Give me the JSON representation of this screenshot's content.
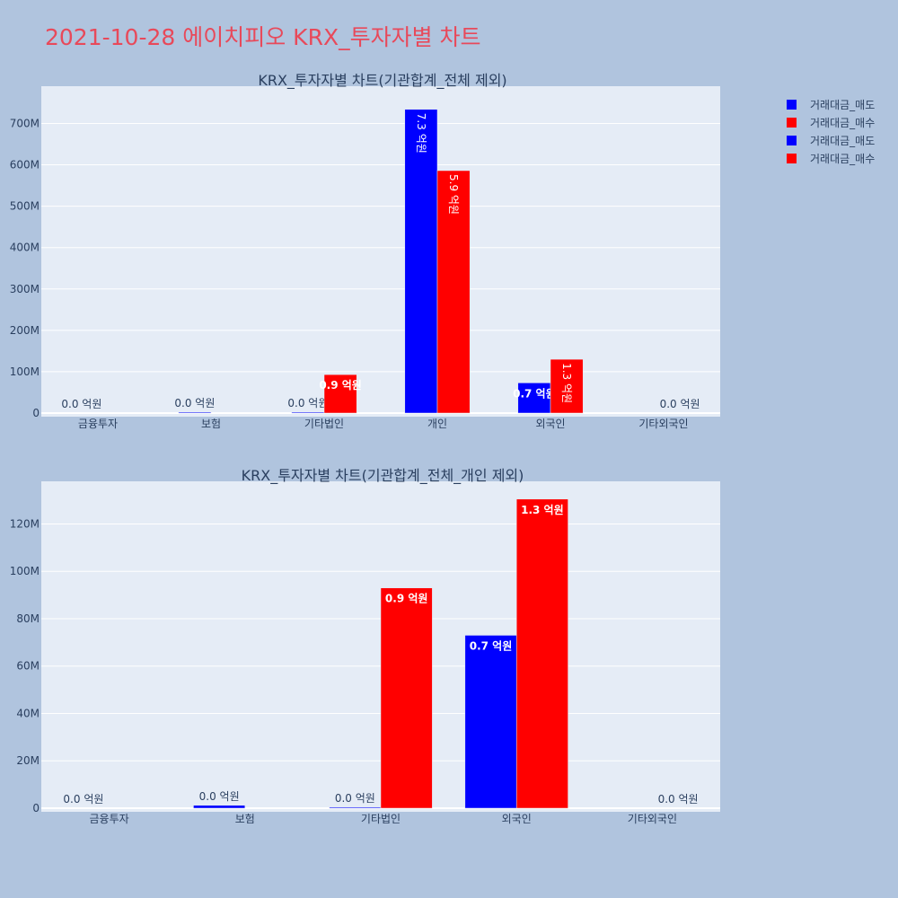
{
  "page_title": "2021-10-28 에이치피오 KRX_투자자별 차트",
  "colors": {
    "background": "#b0c4de",
    "plot_bg": "#e5ecf6",
    "title": "#e8495a",
    "sell": "#0000ff",
    "buy": "#ff0000",
    "text": "#2a3f5f"
  },
  "legend": [
    {
      "label": "거래대금_매도",
      "color": "#0000ff"
    },
    {
      "label": "거래대금_매수",
      "color": "#ff0000"
    },
    {
      "label": "거래대금_매도",
      "color": "#0000ff"
    },
    {
      "label": "거래대금_매수",
      "color": "#ff0000"
    }
  ],
  "chart_data": [
    {
      "type": "bar",
      "title": "KRX_투자자별 차트(기관합계_전체 제외)",
      "categories": [
        "금융투자",
        "보험",
        "기타법인",
        "개인",
        "외국인",
        "기타외국인"
      ],
      "series": [
        {
          "name": "거래대금_매도",
          "color": "#0000ff",
          "values": [
            0,
            1200000,
            400000,
            734000000,
            73000000,
            0
          ],
          "labels": [
            "0.0 억원",
            "0.0 억원",
            "0.0 억원",
            "7.3 억원",
            "0.7 억원",
            ""
          ]
        },
        {
          "name": "거래대금_매수",
          "color": "#ff0000",
          "values": [
            0,
            0,
            93000000,
            586000000,
            130000000,
            0
          ],
          "labels": [
            "",
            "",
            "0.9 억원",
            "5.9 억원",
            "1.3 억원",
            "0.0 억원"
          ]
        }
      ],
      "ylim": [
        0,
        790000000
      ],
      "yticks": [
        0,
        100000000,
        200000000,
        300000000,
        400000000,
        500000000,
        600000000,
        700000000
      ],
      "ytick_labels": [
        "0",
        "100M",
        "200M",
        "300M",
        "400M",
        "500M",
        "600M",
        "700M"
      ]
    },
    {
      "type": "bar",
      "title": "KRX_투자자별 차트(기관합계_전체_개인 제외)",
      "categories": [
        "금융투자",
        "보험",
        "기타법인",
        "외국인",
        "기타외국인"
      ],
      "series": [
        {
          "name": "거래대금_매도",
          "color": "#0000ff",
          "values": [
            0,
            1200000,
            400000,
            73000000,
            0
          ],
          "labels": [
            "0.0 억원",
            "0.0 억원",
            "0.0 억원",
            "0.7 억원",
            ""
          ]
        },
        {
          "name": "거래대금_매수",
          "color": "#ff0000",
          "values": [
            0,
            0,
            93000000,
            130500000,
            0
          ],
          "labels": [
            "",
            "",
            "0.9 억원",
            "1.3 억원",
            "0.0 억원"
          ]
        }
      ],
      "ylim": [
        0,
        138000000
      ],
      "yticks": [
        0,
        20000000,
        40000000,
        60000000,
        80000000,
        100000000,
        120000000
      ],
      "ytick_labels": [
        "0",
        "20M",
        "40M",
        "60M",
        "80M",
        "100M",
        "120M"
      ]
    }
  ]
}
